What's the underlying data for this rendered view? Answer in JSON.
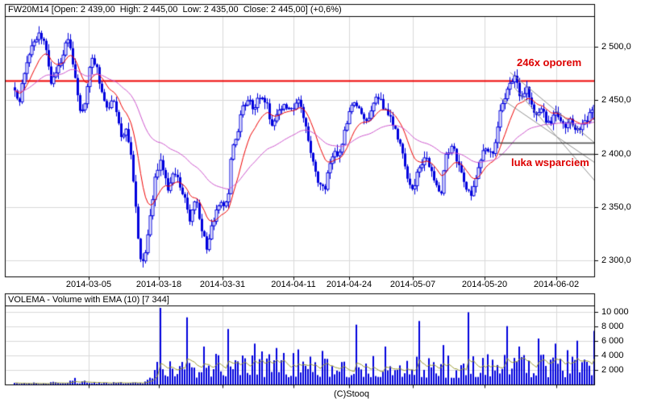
{
  "main_chart": {
    "header": "FW20M14 [Open: 2 439,00  High: 2 445,00  Low: 2 435,00  Close: 2 445,00] (+0,6%)",
    "price_ticks": [
      {
        "label": "2 500,0",
        "price": 2500
      },
      {
        "label": "2 450,0",
        "price": 2450
      },
      {
        "label": "2 400,0",
        "price": 2400
      },
      {
        "label": "2 350,0",
        "price": 2350
      },
      {
        "label": "2 300,0",
        "price": 2300
      }
    ],
    "date_ticks": [
      {
        "label": "2014-03-05",
        "f": 0.128
      },
      {
        "label": "2014-03-18",
        "f": 0.249
      },
      {
        "label": "2014-03-31",
        "f": 0.359
      },
      {
        "label": "2014-04-11",
        "f": 0.481
      },
      {
        "label": "2014-04-24",
        "f": 0.577
      },
      {
        "label": "2014-05-07",
        "f": 0.687
      },
      {
        "label": "2014-05-20",
        "f": 0.811
      },
      {
        "label": "2014-06-02",
        "f": 0.935
      }
    ]
  },
  "volume_panel": {
    "header": "VOLEMA - Volume with EMA (10) [7 344]",
    "ticks": [
      {
        "label": "10 000",
        "v": 10000
      },
      {
        "label": "8 000",
        "v": 8000
      },
      {
        "label": "6 000",
        "v": 6000
      },
      {
        "label": "4 000",
        "v": 4000
      },
      {
        "label": "2 000",
        "v": 2000
      }
    ]
  },
  "annotations": {
    "resistance": "246x oporem",
    "gap_support": "luka wsparciem"
  },
  "footer": {
    "copyright": "(C)Stooq"
  },
  "colors": {
    "candle": "#0000dd",
    "ema_fast": "#ee0000",
    "ema_slow": "#cc55cc",
    "resistance_line": "#ee0000",
    "trendline": "#909090",
    "gap_line": "#444444",
    "volume_bar": "#0000dd",
    "volume_ema": "#999933",
    "grid": "#d9d9d9",
    "axis": "#000000",
    "annotation_text": "#dd0000"
  },
  "chart_data": {
    "type": "candlestick+volume",
    "symbol": "FW20M14",
    "ohlc_display": {
      "open": "2 439,00",
      "high": "2 445,00",
      "low": "2 435,00",
      "close": "2 445,00",
      "change": "+0,6%"
    },
    "price_axis_range": [
      2285,
      2540
    ],
    "volume_axis_range": [
      0,
      11000
    ],
    "bars": 240,
    "last_close": 2445,
    "last_volume": 7344,
    "price_path_anchors": [
      [
        0,
        2462
      ],
      [
        0.008,
        2448
      ],
      [
        0.019,
        2482
      ],
      [
        0.033,
        2504
      ],
      [
        0.045,
        2512
      ],
      [
        0.054,
        2498
      ],
      [
        0.063,
        2466
      ],
      [
        0.072,
        2476
      ],
      [
        0.083,
        2494
      ],
      [
        0.093,
        2507
      ],
      [
        0.103,
        2476
      ],
      [
        0.113,
        2437
      ],
      [
        0.122,
        2448
      ],
      [
        0.132,
        2490
      ],
      [
        0.142,
        2481
      ],
      [
        0.152,
        2450
      ],
      [
        0.163,
        2442
      ],
      [
        0.172,
        2450
      ],
      [
        0.184,
        2414
      ],
      [
        0.193,
        2424
      ],
      [
        0.202,
        2394
      ],
      [
        0.21,
        2344
      ],
      [
        0.218,
        2296
      ],
      [
        0.227,
        2312
      ],
      [
        0.235,
        2342
      ],
      [
        0.245,
        2386
      ],
      [
        0.253,
        2392
      ],
      [
        0.263,
        2364
      ],
      [
        0.271,
        2382
      ],
      [
        0.281,
        2374
      ],
      [
        0.292,
        2358
      ],
      [
        0.302,
        2338
      ],
      [
        0.312,
        2356
      ],
      [
        0.321,
        2330
      ],
      [
        0.331,
        2312
      ],
      [
        0.339,
        2330
      ],
      [
        0.348,
        2346
      ],
      [
        0.356,
        2352
      ],
      [
        0.366,
        2358
      ],
      [
        0.369,
        2360
      ],
      [
        0.373,
        2398
      ],
      [
        0.381,
        2414
      ],
      [
        0.392,
        2440
      ],
      [
        0.403,
        2452
      ],
      [
        0.413,
        2442
      ],
      [
        0.423,
        2455
      ],
      [
        0.434,
        2446
      ],
      [
        0.444,
        2425
      ],
      [
        0.455,
        2440
      ],
      [
        0.465,
        2448
      ],
      [
        0.476,
        2438
      ],
      [
        0.487,
        2452
      ],
      [
        0.497,
        2438
      ],
      [
        0.506,
        2416
      ],
      [
        0.515,
        2390
      ],
      [
        0.524,
        2370
      ],
      [
        0.534,
        2366
      ],
      [
        0.542,
        2386
      ],
      [
        0.551,
        2402
      ],
      [
        0.559,
        2394
      ],
      [
        0.569,
        2420
      ],
      [
        0.579,
        2440
      ],
      [
        0.587,
        2452
      ],
      [
        0.597,
        2436
      ],
      [
        0.605,
        2428
      ],
      [
        0.615,
        2440
      ],
      [
        0.624,
        2455
      ],
      [
        0.634,
        2446
      ],
      [
        0.643,
        2438
      ],
      [
        0.652,
        2430
      ],
      [
        0.662,
        2414
      ],
      [
        0.67,
        2400
      ],
      [
        0.68,
        2374
      ],
      [
        0.688,
        2367
      ],
      [
        0.698,
        2386
      ],
      [
        0.708,
        2398
      ],
      [
        0.716,
        2388
      ],
      [
        0.726,
        2371
      ],
      [
        0.736,
        2364
      ],
      [
        0.744,
        2398
      ],
      [
        0.754,
        2408
      ],
      [
        0.762,
        2394
      ],
      [
        0.77,
        2384
      ],
      [
        0.779,
        2367
      ],
      [
        0.787,
        2361
      ],
      [
        0.795,
        2376
      ],
      [
        0.804,
        2398
      ],
      [
        0.812,
        2406
      ],
      [
        0.821,
        2398
      ],
      [
        0.829,
        2410
      ],
      [
        0.837,
        2440
      ],
      [
        0.846,
        2456
      ],
      [
        0.854,
        2468
      ],
      [
        0.861,
        2472
      ],
      [
        0.868,
        2460
      ],
      [
        0.876,
        2450
      ],
      [
        0.883,
        2460
      ],
      [
        0.89,
        2446
      ],
      [
        0.898,
        2436
      ],
      [
        0.907,
        2444
      ],
      [
        0.915,
        2433
      ],
      [
        0.923,
        2426
      ],
      [
        0.932,
        2438
      ],
      [
        0.94,
        2429
      ],
      [
        0.949,
        2424
      ],
      [
        0.957,
        2432
      ],
      [
        0.965,
        2420
      ],
      [
        0.974,
        2424
      ],
      [
        0.982,
        2428
      ],
      [
        0.99,
        2434
      ],
      [
        1,
        2445
      ]
    ],
    "volume_baseline_anchors": [
      [
        0,
        140
      ],
      [
        0.06,
        200
      ],
      [
        0.105,
        420
      ],
      [
        0.15,
        230
      ],
      [
        0.2,
        260
      ],
      [
        0.228,
        320
      ],
      [
        0.234,
        1500
      ],
      [
        0.242,
        2400
      ],
      [
        0.25,
        2900
      ],
      [
        0.26,
        3100
      ],
      [
        0.28,
        2700
      ],
      [
        0.3,
        2800
      ],
      [
        0.32,
        2600
      ],
      [
        0.34,
        2700
      ],
      [
        0.37,
        3000
      ],
      [
        0.4,
        2800
      ],
      [
        0.43,
        2900
      ],
      [
        0.46,
        2700
      ],
      [
        0.5,
        2800
      ],
      [
        0.53,
        2900
      ],
      [
        0.56,
        2700
      ],
      [
        0.6,
        2800
      ],
      [
        0.63,
        2600
      ],
      [
        0.66,
        2700
      ],
      [
        0.7,
        2800
      ],
      [
        0.73,
        2500
      ],
      [
        0.76,
        2600
      ],
      [
        0.8,
        2500
      ],
      [
        0.83,
        2700
      ],
      [
        0.86,
        3000
      ],
      [
        0.9,
        2800
      ],
      [
        0.93,
        2700
      ],
      [
        0.96,
        2900
      ],
      [
        1,
        3300
      ]
    ],
    "volume_spikes": [
      [
        0.106,
        900
      ],
      [
        0.253,
        10500
      ],
      [
        0.299,
        9200
      ],
      [
        0.325,
        5200
      ],
      [
        0.369,
        7600
      ],
      [
        0.416,
        5600
      ],
      [
        0.452,
        5000
      ],
      [
        0.49,
        4800
      ],
      [
        0.53,
        4600
      ],
      [
        0.588,
        8200
      ],
      [
        0.64,
        5200
      ],
      [
        0.698,
        8700
      ],
      [
        0.74,
        5400
      ],
      [
        0.782,
        9900
      ],
      [
        0.848,
        8000
      ],
      [
        0.87,
        5200
      ],
      [
        0.903,
        6300
      ],
      [
        0.935,
        5600
      ],
      [
        0.955,
        4700
      ],
      [
        0.972,
        6000
      ],
      [
        1,
        7344
      ]
    ],
    "overlays": {
      "resistance_line": {
        "price": 2468
      },
      "gap_lines": [
        {
          "price": 2410,
          "f1": 0.836,
          "f2": 1.0
        },
        {
          "price": 2400,
          "f1": 0.836,
          "f2": 1.0
        }
      ],
      "trendlines": [
        {
          "f1": 0.855,
          "p1": 2476,
          "f2": 1.005,
          "p2": 2408
        },
        {
          "f1": 0.838,
          "p1": 2452,
          "f2": 1.005,
          "p2": 2390
        },
        {
          "f1": 0.862,
          "p1": 2462,
          "f2": 1.005,
          "p2": 2372
        }
      ]
    },
    "emas": {
      "fast_period": 12,
      "slow_period": 45,
      "volume_period": 10
    }
  }
}
